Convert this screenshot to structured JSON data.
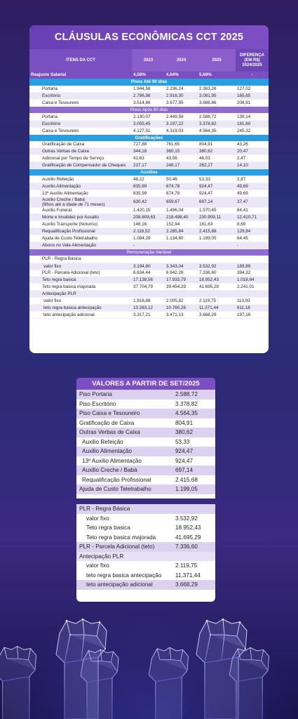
{
  "card1": {
    "title": "CLÁUSULAS ECONÔMICAS CCT 2025",
    "headers": [
      "ITENS DA CCT",
      "2023",
      "2024",
      "2025",
      "DIFERENÇA (EM R$) 2024/2025"
    ],
    "reajuste": [
      "Reajuste Salarial",
      "4,58%",
      "4,64%",
      "5,68%",
      "-"
    ],
    "pisos_ate_90": {
      "label": "Pisos Até 90 dias",
      "rows": [
        [
          "Portaria",
          "1.944,56",
          "2.236,24",
          "2.363,26",
          "127,02"
        ],
        [
          "Escritório",
          "2.786,98",
          "2.916,30",
          "3.081,95",
          "165,65"
        ],
        [
          "Caixa e Tesoureiro",
          "3.514,86",
          "3.677,95",
          "3.886,86",
          "208,91"
        ]
      ]
    },
    "pisos_apos_90": {
      "label": "Pisos Após 90 dias",
      "rows": [
        [
          "Portaria",
          "2.130,07",
          "2.449,58",
          "2.588,72",
          "139,14"
        ],
        [
          "Escritório",
          "3.055,45",
          "3.197,22",
          "3.378,82",
          "181,60"
        ],
        [
          "Caixa e Tesoureiro",
          "4.127,51",
          "4.319,03",
          "4.564,35",
          "245,32"
        ]
      ]
    },
    "gratificacoes": {
      "label": "Gratificações",
      "rows": [
        [
          "Gratificação de Caixa",
          "727,88",
          "761,65",
          "804,91",
          "43,26"
        ],
        [
          "Outras Verbas de Caixa",
          "344,18",
          "360,15",
          "380,62",
          "20,47"
        ],
        [
          "Adicional por Tempo de Serviço",
          "41,63",
          "43,56",
          "46,03",
          "2,47"
        ],
        [
          "Gratificação de Compensador de Cheques",
          "237,17",
          "248,17",
          "262,27",
          "14,10"
        ]
      ]
    },
    "auxilios": {
      "label": "Auxílios",
      "rows": [
        [
          "Auxílio Refeição",
          "48,22",
          "50,46",
          "53,33",
          "2,87"
        ],
        [
          "Auxílio Alimentação",
          "835,99",
          "874,78",
          "924,47",
          "49,69"
        ],
        [
          "13º Auxílio Alimentação",
          "835,99",
          "874,78",
          "924,47",
          "49,69"
        ]
      ],
      "creche_label_1": "Auxílio Creche / Babá",
      "creche_label_2": "(filhos até a idade de 71 meses)",
      "creche_values": [
        "630,42",
        "659,67",
        "697,14",
        "37,47"
      ],
      "rows2": [
        [
          "Auxílio Funeral",
          "1.420,15",
          "1.486,04",
          "1.570,45",
          "84,41"
        ],
        [
          "Morte e Invalidez por Assalto",
          "208.809,63",
          "218.498,40",
          "230.909,11",
          "12.410,71"
        ],
        [
          "Auxílio Transporte (Noturno)",
          "146,16",
          "152,94",
          "161,63",
          "8,69"
        ],
        [
          "Requalificação Profissional",
          "2.116,52",
          "2.285,84",
          "2.415,68",
          "129,84"
        ],
        [
          "Ajuda de Custo Teletrabalho",
          "1.084,29",
          "1.134,60",
          "1.199,05",
          "64,45"
        ],
        [
          "Abono no Vale Alimentação",
          "-",
          "",
          "",
          "-"
        ]
      ]
    },
    "remuneracao": {
      "label": "Remuneração Variável",
      "plr_basica": "PLR - Regra Básica",
      "valor_fixo": [
        "valor fixo",
        "3.194,80",
        "3.343,04",
        "3.532,92",
        "189,89"
      ],
      "parcela": [
        "PLR - Parcela Adicional (teto)",
        "6.634,44",
        "6.942,28",
        "7.336,60",
        "394,32"
      ],
      "teto_basica": [
        "Teto regra basica",
        "17.138,56",
        "17.933,79",
        "18.952,43",
        "1.018,64"
      ],
      "teto_majorada": [
        "Teto regra basica majorada",
        "37.704,79",
        "39.454,29",
        "41.695,29",
        "2.241,01"
      ],
      "antecipacao": "Antecipação PLR",
      "ant_fixo": [
        "valor fixo",
        "1.916,88",
        "2.005,82",
        "2.119,75",
        "113,93"
      ],
      "ant_teto": [
        "teto regra basica antecipação",
        "10.283,12",
        "10.760,26",
        "11.371,44",
        "611,18"
      ],
      "ant_adic": [
        "teto antecipação adicional",
        "3.317,21",
        "3.471,13",
        "3.668,29",
        "197,16"
      ]
    }
  },
  "card2": {
    "title": "VALORES A PARTIR DE SET/2025",
    "rows": [
      [
        "Piso Portaria",
        "2.588,72"
      ],
      [
        "Piso Escritório",
        "3.378,82"
      ],
      [
        "Piso Caixa e Tesoureiro",
        "4.564,35"
      ],
      [
        "Gratificação de Caixa",
        "804,91"
      ],
      [
        "Outras Verbas de Caixa",
        "380,62"
      ],
      [
        "Auxilio Refeição",
        "53,33"
      ],
      [
        "Auxilio Alimentação",
        "924,47"
      ],
      [
        "13º Auxilio Alimentação",
        "924,47"
      ],
      [
        "Auxilio Creche / Babá",
        "697,14"
      ],
      [
        "Requalificação Profissional",
        "2.415,68"
      ],
      [
        "Ajuda de Custo Teletrabalho",
        "1.199,05"
      ]
    ]
  },
  "card3": {
    "rows": [
      [
        "PLR - Regra Básica",
        ""
      ],
      [
        "valor fixo",
        "3.532,92"
      ],
      [
        "Teto regra basica",
        "18.952,43"
      ],
      [
        "Teto regra basica majorada",
        "41.695,29"
      ],
      [
        "PLR - Parcela Adicional (teto)",
        "7.336,60"
      ],
      [
        "Antecipação PLR",
        ""
      ],
      [
        "valor fixo",
        "2.119,75"
      ],
      [
        "teto regra basica antecipação",
        "11.371,44"
      ],
      [
        "teto antecipação adicional",
        "3.668,29"
      ]
    ]
  },
  "icons": [
    "raised-fist-icon"
  ]
}
